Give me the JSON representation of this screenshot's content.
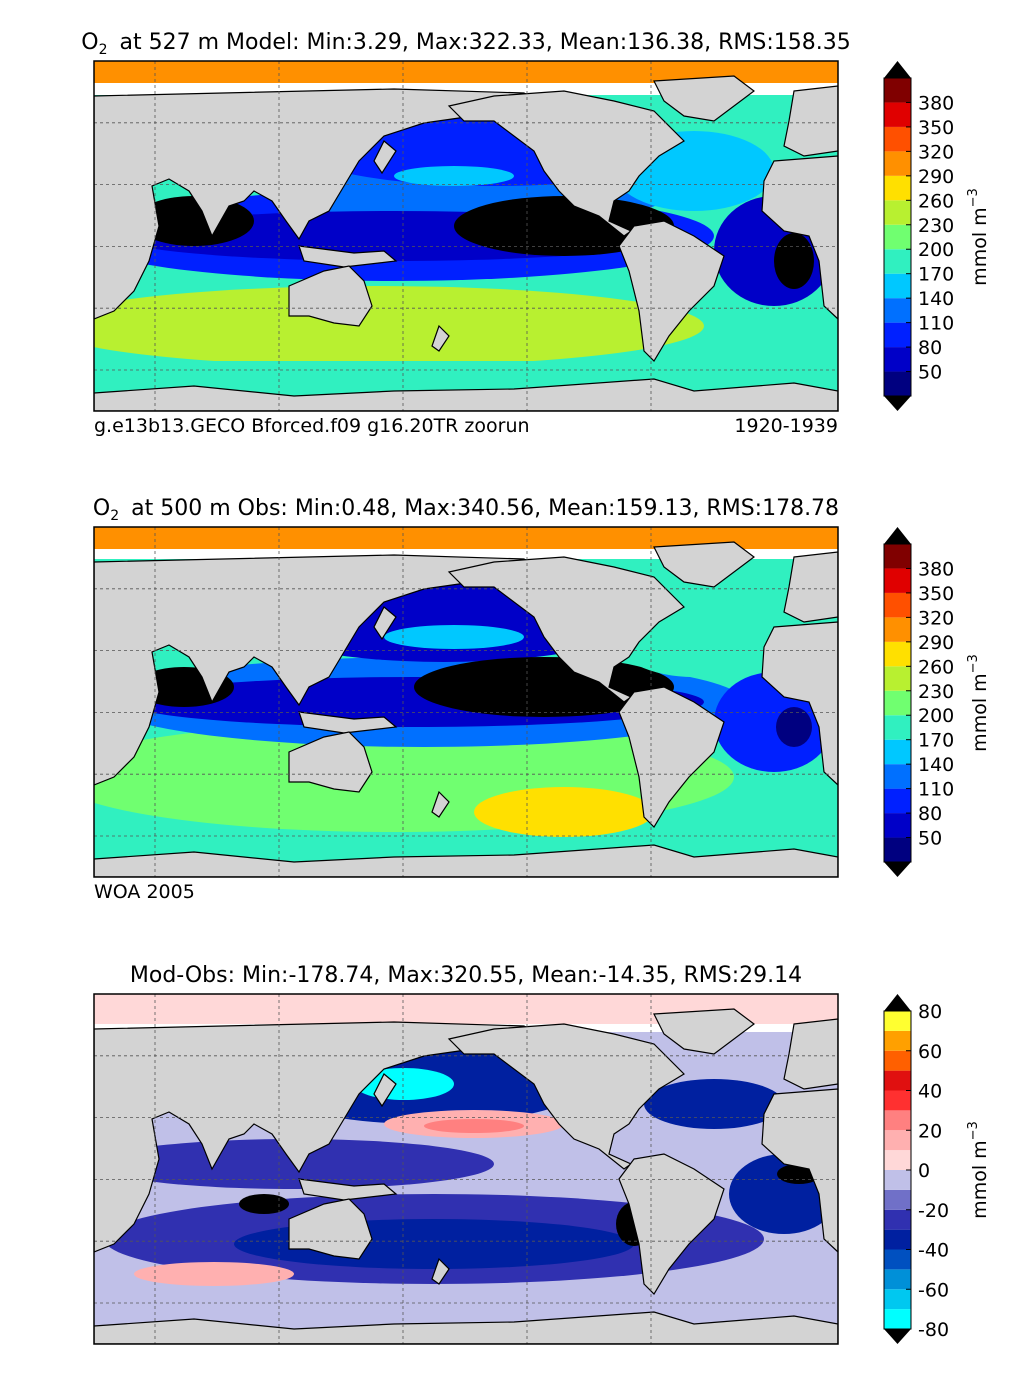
{
  "panels": [
    {
      "title": {
        "species": "O",
        "subscript": "2",
        "text": "at 527 m Model: Min:3.29, Max:322.33, Mean:136.38, RMS:158.35"
      },
      "footer_left": "g.e13b13.GECO Bforced.f09 g16.20TR zoorun",
      "footer_right": "1920-1939",
      "colorbar": {
        "levels": [
          20,
          50,
          80,
          110,
          140,
          170,
          200,
          230,
          260,
          290,
          320,
          350,
          380,
          410
        ],
        "colors": [
          "#000080",
          "#0000c8",
          "#0020ff",
          "#0070ff",
          "#00c8ff",
          "#30f0c0",
          "#70ff70",
          "#b8f030",
          "#ffe000",
          "#ff9000",
          "#ff5000",
          "#e00000",
          "#800000"
        ],
        "ticks": [
          50,
          80,
          110,
          140,
          170,
          200,
          230,
          260,
          290,
          320,
          350,
          380
        ],
        "unit": "mmol m",
        "unit_exponent": "−3"
      }
    },
    {
      "title": {
        "species": "O",
        "subscript": "2",
        "text": "at 500 m Obs: Min:0.48, Max:340.56, Mean:159.13, RMS:178.78"
      },
      "footer_left": "WOA 2005",
      "colorbar": {
        "levels": [
          20,
          50,
          80,
          110,
          140,
          170,
          200,
          230,
          260,
          290,
          320,
          350,
          380,
          410
        ],
        "colors": [
          "#000080",
          "#0000c8",
          "#0020ff",
          "#0070ff",
          "#00c8ff",
          "#30f0c0",
          "#70ff70",
          "#b8f030",
          "#ffe000",
          "#ff9000",
          "#ff5000",
          "#e00000",
          "#800000"
        ],
        "ticks": [
          50,
          80,
          110,
          140,
          170,
          200,
          230,
          260,
          290,
          320,
          350,
          380
        ],
        "unit": "mmol m",
        "unit_exponent": "−3"
      }
    },
    {
      "title": {
        "text": "Mod-Obs: Min:-178.74, Max:320.55, Mean:-14.35, RMS:29.14"
      },
      "colorbar": {
        "levels": [
          -80,
          -70,
          -60,
          -50,
          -40,
          -30,
          -20,
          -10,
          0,
          10,
          20,
          30,
          40,
          50,
          60,
          70,
          80
        ],
        "colors": [
          "#00ffff",
          "#00c8f0",
          "#0090d8",
          "#0050c0",
          "#0020a0",
          "#3030b0",
          "#7070c8",
          "#c0c0e8",
          "#ffd8d8",
          "#ffb0b0",
          "#ff8080",
          "#ff3030",
          "#e01010",
          "#ff6000",
          "#ffa000",
          "#ffff30"
        ],
        "ticks": [
          -80,
          -60,
          -40,
          -20,
          0,
          20,
          40,
          60,
          80
        ],
        "unit": "mmol m",
        "unit_exponent": "−3"
      }
    }
  ]
}
